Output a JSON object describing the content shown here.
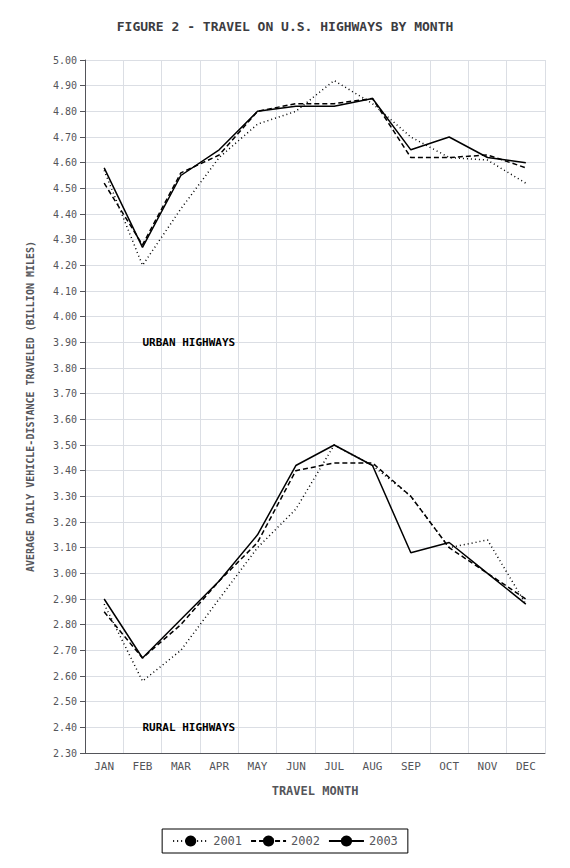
{
  "chart_data": {
    "type": "line",
    "title": "FIGURE 2 - TRAVEL ON U.S. HIGHWAYS BY MONTH",
    "x_label": "TRAVEL MONTH",
    "y_label": "AVERAGE DAILY VEHICLE-DISTANCE TRAVELED (BILLION MILES)",
    "categories": [
      "JAN",
      "FEB",
      "MAR",
      "APR",
      "MAY",
      "JUN",
      "JUL",
      "AUG",
      "SEP",
      "OCT",
      "NOV",
      "DEC"
    ],
    "series": [
      {
        "name": "2001",
        "color": "#000000",
        "line_style": "dotted",
        "values": [
          4.57,
          4.2,
          4.42,
          4.62,
          4.75,
          4.8,
          4.92,
          4.83,
          4.7,
          4.62,
          4.61,
          4.52
        ]
      },
      {
        "name": "2002",
        "color": "#000000",
        "line_style": "dashed",
        "values": [
          4.52,
          4.28,
          4.56,
          4.63,
          4.8,
          4.83,
          4.83,
          4.85,
          4.62,
          4.62,
          4.63,
          4.58
        ]
      },
      {
        "name": "2003",
        "color": "#000000",
        "line_style": "solid",
        "values": [
          4.58,
          4.27,
          4.55,
          4.65,
          4.8,
          4.82,
          4.82,
          4.85,
          4.65,
          4.7,
          4.62,
          4.6
        ]
      },
      {
        "name": "2001",
        "color": "#000000",
        "line_style": "dotted",
        "values": [
          2.88,
          2.58,
          2.7,
          2.9,
          3.1,
          3.25,
          3.5,
          3.42,
          3.3,
          3.1,
          3.13,
          2.88
        ]
      },
      {
        "name": "2002",
        "color": "#000000",
        "line_style": "dashed",
        "values": [
          2.85,
          2.67,
          2.8,
          2.97,
          3.12,
          3.4,
          3.43,
          3.43,
          3.3,
          3.1,
          3.0,
          2.9
        ]
      },
      {
        "name": "2003",
        "color": "#000000",
        "line_style": "solid",
        "values": [
          2.9,
          2.67,
          2.82,
          2.97,
          3.15,
          3.42,
          3.5,
          3.42,
          3.08,
          3.12,
          3.0,
          2.88
        ]
      }
    ],
    "annotations": [
      {
        "text": "URBAN HIGHWAYS",
        "x": 1.2,
        "y": 3.9
      },
      {
        "text": "RURAL HIGHWAYS",
        "x": 1.2,
        "y": 2.4
      }
    ],
    "ylim": [
      2.3,
      5.0
    ],
    "yticks": [
      {
        "value": 2.3,
        "label": "2.30"
      },
      {
        "value": 2.4,
        "label": "2.40"
      },
      {
        "value": 2.5,
        "label": "2.50"
      },
      {
        "value": 2.6,
        "label": "2.60"
      },
      {
        "value": 2.7,
        "label": "2.70"
      },
      {
        "value": 2.8,
        "label": "2.80"
      },
      {
        "value": 2.9,
        "label": "2.90"
      },
      {
        "value": 3.0,
        "label": "3.00"
      },
      {
        "value": 3.1,
        "label": "3.10"
      },
      {
        "value": 3.2,
        "label": "3.20"
      },
      {
        "value": 3.3,
        "label": "3.30"
      },
      {
        "value": 3.4,
        "label": "3.40"
      },
      {
        "value": 3.5,
        "label": "3.50"
      },
      {
        "value": 3.6,
        "label": "3.60"
      },
      {
        "value": 3.7,
        "label": "3.70"
      },
      {
        "value": 3.8,
        "label": "3.80"
      },
      {
        "value": 3.9,
        "label": "3.90"
      },
      {
        "value": 4.0,
        "label": "4.00"
      },
      {
        "value": 4.1,
        "label": "4.10"
      },
      {
        "value": 4.2,
        "label": "4.20"
      },
      {
        "value": 4.3,
        "label": "4.30"
      },
      {
        "value": 4.4,
        "label": "4.40"
      },
      {
        "value": 4.5,
        "label": "4.50"
      },
      {
        "value": 4.6,
        "label": "4.60"
      },
      {
        "value": 4.7,
        "label": "4.70"
      },
      {
        "value": 4.8,
        "label": "4.80"
      },
      {
        "value": 4.9,
        "label": "4.90"
      },
      {
        "value": 5.0,
        "label": "5.00"
      }
    ],
    "grid": true,
    "legend": "bottom"
  }
}
